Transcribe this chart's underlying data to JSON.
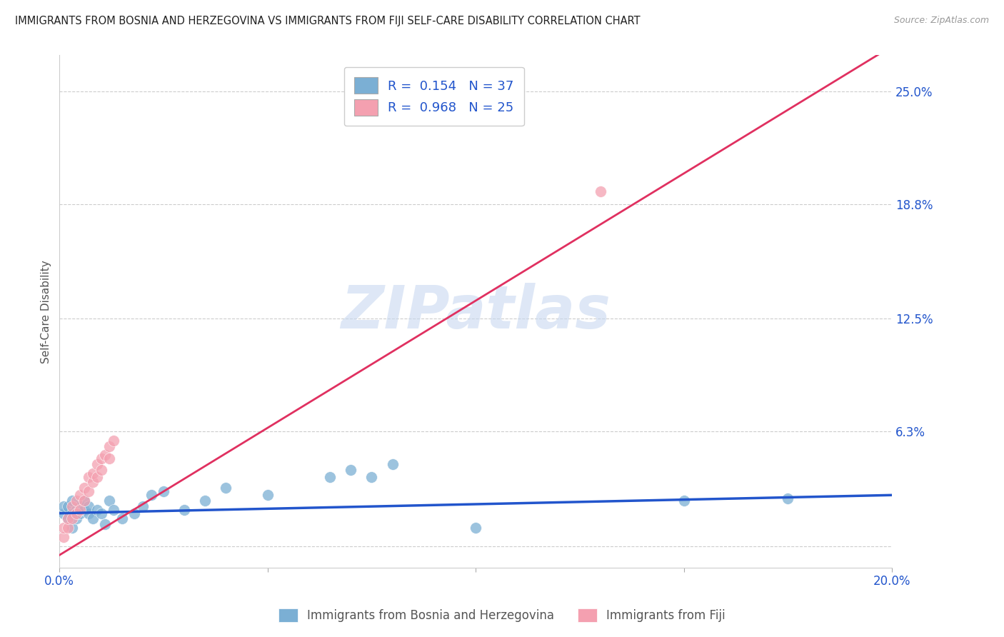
{
  "title": "IMMIGRANTS FROM BOSNIA AND HERZEGOVINA VS IMMIGRANTS FROM FIJI SELF-CARE DISABILITY CORRELATION CHART",
  "source": "Source: ZipAtlas.com",
  "ylabel": "Self-Care Disability",
  "xlim": [
    0.0,
    0.2
  ],
  "ylim": [
    -0.012,
    0.27
  ],
  "yticks": [
    0.0,
    0.063,
    0.125,
    0.188,
    0.25
  ],
  "ytick_labels": [
    "",
    "6.3%",
    "12.5%",
    "18.8%",
    "25.0%"
  ],
  "xticks": [
    0.0,
    0.05,
    0.1,
    0.15,
    0.2
  ],
  "xtick_labels": [
    "0.0%",
    "",
    "",
    "",
    "20.0%"
  ],
  "bosnia_color": "#7bafd4",
  "fiji_color": "#f4a0b0",
  "bosnia_line_color": "#2255cc",
  "fiji_line_color": "#e03060",
  "bosnia_R": 0.154,
  "bosnia_N": 37,
  "fiji_R": 0.968,
  "fiji_N": 25,
  "bosnia_x": [
    0.001,
    0.001,
    0.002,
    0.002,
    0.003,
    0.003,
    0.003,
    0.004,
    0.004,
    0.005,
    0.005,
    0.006,
    0.006,
    0.007,
    0.007,
    0.008,
    0.009,
    0.01,
    0.011,
    0.012,
    0.013,
    0.015,
    0.018,
    0.02,
    0.022,
    0.025,
    0.03,
    0.035,
    0.04,
    0.05,
    0.065,
    0.07,
    0.075,
    0.08,
    0.1,
    0.15,
    0.175
  ],
  "bosnia_y": [
    0.018,
    0.022,
    0.015,
    0.022,
    0.018,
    0.01,
    0.025,
    0.02,
    0.015,
    0.022,
    0.018,
    0.02,
    0.025,
    0.018,
    0.022,
    0.015,
    0.02,
    0.018,
    0.012,
    0.025,
    0.02,
    0.015,
    0.018,
    0.022,
    0.028,
    0.03,
    0.02,
    0.025,
    0.032,
    0.028,
    0.038,
    0.042,
    0.038,
    0.045,
    0.01,
    0.025,
    0.026
  ],
  "fiji_x": [
    0.001,
    0.001,
    0.002,
    0.002,
    0.003,
    0.003,
    0.004,
    0.004,
    0.005,
    0.005,
    0.006,
    0.006,
    0.007,
    0.007,
    0.008,
    0.008,
    0.009,
    0.009,
    0.01,
    0.01,
    0.011,
    0.012,
    0.012,
    0.013,
    0.13
  ],
  "fiji_y": [
    0.005,
    0.01,
    0.01,
    0.015,
    0.015,
    0.022,
    0.018,
    0.025,
    0.02,
    0.028,
    0.025,
    0.032,
    0.03,
    0.038,
    0.035,
    0.04,
    0.038,
    0.045,
    0.042,
    0.048,
    0.05,
    0.048,
    0.055,
    0.058,
    0.195
  ],
  "fiji_line_x": [
    0.0,
    0.2
  ],
  "fiji_line_y": [
    -0.005,
    0.275
  ],
  "bosnia_line_x": [
    0.0,
    0.2
  ],
  "bosnia_line_y": [
    0.018,
    0.028
  ],
  "watermark_text": "ZIPatlas",
  "watermark_color": "#c8d8f0",
  "background_color": "#ffffff",
  "grid_color": "#cccccc"
}
